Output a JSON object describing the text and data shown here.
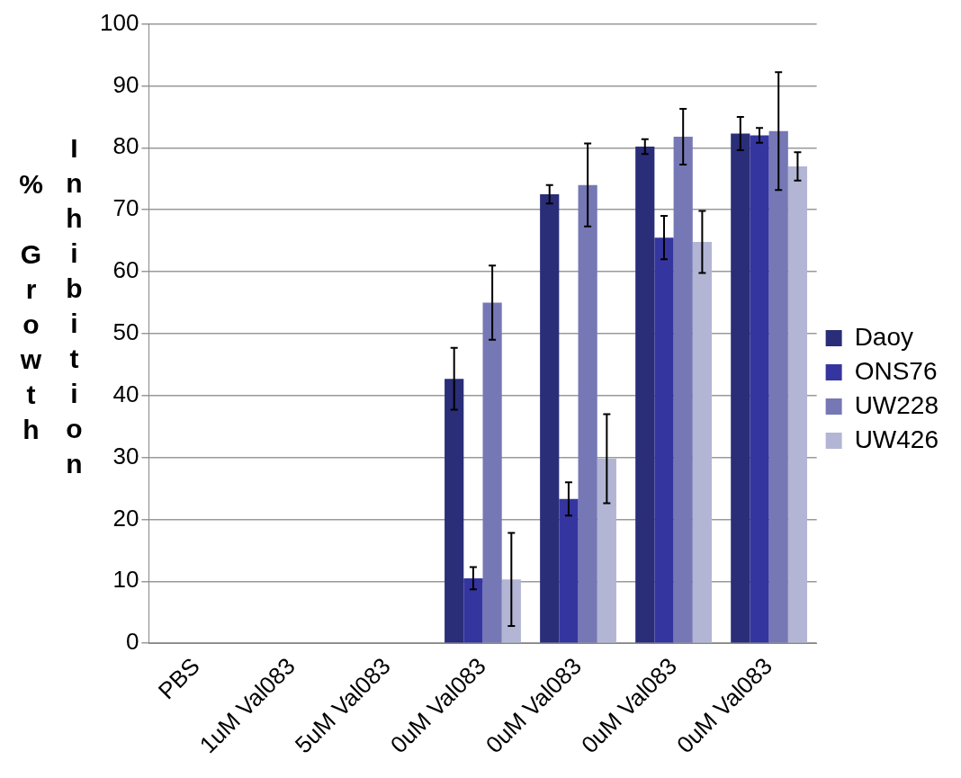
{
  "chart_data": {
    "type": "bar",
    "ylabel": "% Growth Inhibition",
    "categories": [
      "PBS",
      "1uM Val083",
      "5uM Val083",
      "0uM Val083",
      "0uM Val083",
      "0uM Val083",
      "0uM Val083"
    ],
    "series": [
      {
        "name": "Daoy",
        "color": "#2a2d78",
        "values": [
          0,
          0,
          0,
          42.7,
          72.5,
          80.2,
          82.3
        ],
        "errors": [
          null,
          null,
          null,
          5,
          1.5,
          1.2,
          2.7
        ]
      },
      {
        "name": "ONS76",
        "color": "#3535a0",
        "values": [
          0,
          0,
          0,
          10.5,
          23.3,
          65.5,
          82
        ],
        "errors": [
          null,
          null,
          null,
          1.8,
          2.7,
          3.5,
          1.2
        ]
      },
      {
        "name": "UW228",
        "color": "#7578b5",
        "values": [
          0,
          0,
          0,
          55,
          74,
          81.8,
          82.7
        ],
        "errors": [
          null,
          null,
          null,
          6,
          6.7,
          4.5,
          9.5
        ]
      },
      {
        "name": "UW426",
        "color": "#b3b5d5",
        "values": [
          0,
          0,
          0,
          10.3,
          29.8,
          64.8,
          77
        ],
        "errors": [
          null,
          null,
          null,
          7.5,
          7.2,
          5,
          2.3
        ]
      }
    ],
    "ylim": [
      0,
      100
    ],
    "yticks": [
      0,
      10,
      20,
      30,
      40,
      50,
      60,
      70,
      80,
      90,
      100
    ],
    "grid": "y",
    "legend": "right"
  }
}
